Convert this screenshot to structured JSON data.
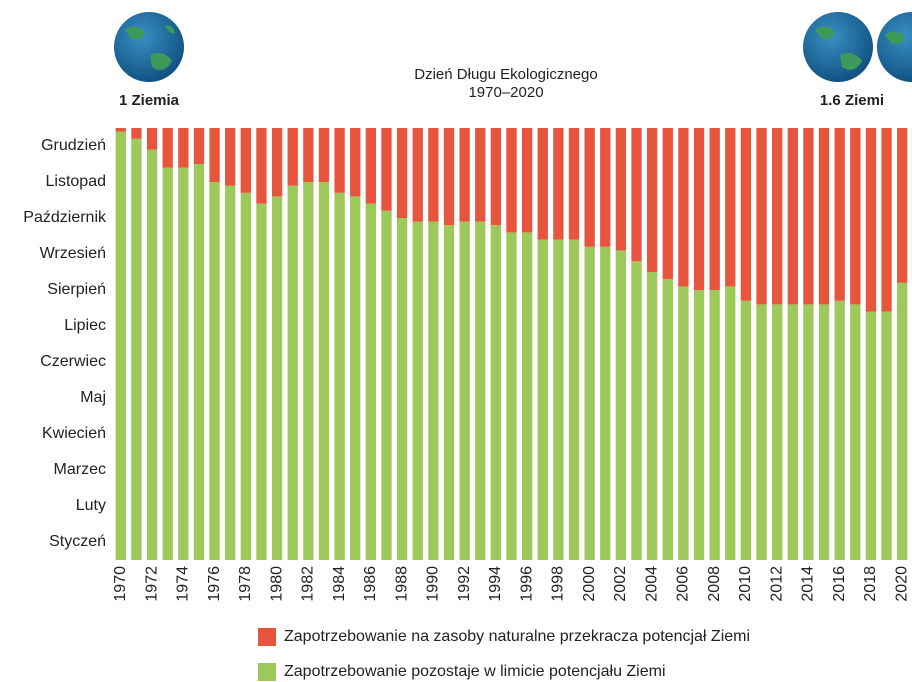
{
  "chart_data": {
    "type": "stacked_bar",
    "title": "Dzień Długu Ekologicznego",
    "subtitle": "1970–2020",
    "left_label": "1 Ziemia",
    "right_label": "1.6  Ziemi",
    "categories": [
      "1970",
      null,
      "1972",
      null,
      "1974",
      null,
      "1976",
      null,
      "1978",
      null,
      "1980",
      null,
      "1982",
      null,
      "1984",
      null,
      "1986",
      null,
      "1988",
      null,
      "1990",
      null,
      "1992",
      null,
      "1994",
      null,
      "1996",
      null,
      "1998",
      null,
      "2000",
      null,
      "2002",
      null,
      "2004",
      null,
      "2006",
      null,
      "2008",
      null,
      "2010",
      null,
      "2012",
      null,
      "2014",
      null,
      "2016",
      null,
      "2018",
      null,
      "2020"
    ],
    "series": [
      {
        "name": "Zapotrzebowanie pozostaje w limicie potencjału Ziemi",
        "color": "#9dc95b",
        "values": [
          11.9,
          11.7,
          11.4,
          10.9,
          10.9,
          11.0,
          10.5,
          10.4,
          10.2,
          9.9,
          10.1,
          10.4,
          10.5,
          10.5,
          10.2,
          10.1,
          9.9,
          9.7,
          9.5,
          9.4,
          9.4,
          9.3,
          9.4,
          9.4,
          9.3,
          9.1,
          9.1,
          8.9,
          8.9,
          8.9,
          8.7,
          8.7,
          8.6,
          8.3,
          8.0,
          7.8,
          7.6,
          7.5,
          7.5,
          7.6,
          7.2,
          7.1,
          7.1,
          7.1,
          7.1,
          7.1,
          7.2,
          7.1,
          6.9,
          6.9,
          7.7
        ]
      },
      {
        "name": "Zapotrzebowanie na zasoby naturalne przekracza potencjał Ziemi",
        "color": "#e8553f",
        "values": [
          0.1,
          0.3,
          0.6,
          1.1,
          1.1,
          1.0,
          1.5,
          1.6,
          1.8,
          2.1,
          1.9,
          1.6,
          1.5,
          1.5,
          1.8,
          1.9,
          2.1,
          2.3,
          2.5,
          2.6,
          2.6,
          2.7,
          2.6,
          2.6,
          2.7,
          2.9,
          2.9,
          3.1,
          3.1,
          3.1,
          3.3,
          3.3,
          3.4,
          3.7,
          4.0,
          4.2,
          4.4,
          4.5,
          4.5,
          4.4,
          4.8,
          4.9,
          4.9,
          4.9,
          4.9,
          4.9,
          4.8,
          4.9,
          5.1,
          5.1,
          4.3
        ]
      }
    ],
    "ylim": [
      0,
      12
    ],
    "yticks": [
      {
        "value": 0.5,
        "label": "Styczeń"
      },
      {
        "value": 1.5,
        "label": "Luty"
      },
      {
        "value": 2.5,
        "label": "Marzec"
      },
      {
        "value": 3.5,
        "label": "Kwiecień"
      },
      {
        "value": 4.5,
        "label": "Maj"
      },
      {
        "value": 5.5,
        "label": "Czerwiec"
      },
      {
        "value": 6.5,
        "label": "Lipiec"
      },
      {
        "value": 7.5,
        "label": "Sierpień"
      },
      {
        "value": 8.5,
        "label": "Wrzesień"
      },
      {
        "value": 9.5,
        "label": "Październik"
      },
      {
        "value": 10.5,
        "label": "Listopad"
      },
      {
        "value": 11.5,
        "label": "Grudzień"
      }
    ]
  }
}
